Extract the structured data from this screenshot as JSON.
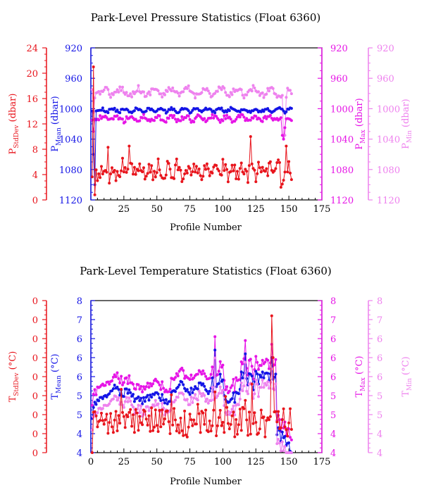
{
  "footer_text": "",
  "colors": {
    "stddev": "#e8141c",
    "mean": "#1414e6",
    "max": "#e614e6",
    "min": "#ee82ee",
    "axis": "#000000"
  },
  "chart_data": [
    {
      "type": "line",
      "title": "Park-Level Pressure Statistics (Float 6360)",
      "xlabel": "Profile Number",
      "xlim": [
        0,
        175
      ],
      "x_ticks": [
        "0",
        "25",
        "50",
        "75",
        "100",
        "125",
        "150",
        "175"
      ],
      "axes": {
        "stddev": {
          "label": "P",
          "sub": "StdDev",
          "unit": " (dbar)",
          "ticks": [
            "24",
            "20",
            "16",
            "12",
            "8",
            "4",
            "0"
          ],
          "ylim": [
            0,
            24
          ]
        },
        "mean": {
          "label": "P",
          "sub": "Mean",
          "unit": " (dbar)",
          "ticks": [
            "920",
            "960",
            "1000",
            "1040",
            "1080",
            "1120"
          ],
          "ylim": [
            1120,
            920
          ],
          "inverted": true
        },
        "max": {
          "label": "P",
          "sub": "Max",
          "unit": " (dbar)",
          "ticks": [
            "920",
            "960",
            "1000",
            "1040",
            "1080",
            "1120"
          ],
          "ylim": [
            1120,
            920
          ],
          "inverted": true
        },
        "min": {
          "label": "P",
          "sub": "Min",
          "unit": " (dbar)",
          "ticks": [
            "920",
            "960",
            "1000",
            "1040",
            "1080",
            "1120"
          ],
          "ylim": [
            1120,
            920
          ],
          "inverted": true
        }
      },
      "series": [
        {
          "key": "min",
          "base": 978,
          "amp": 5,
          "freq": 0.5,
          "noise": 4,
          "spikes": [
            [
              1,
              1005
            ],
            [
              145,
              1040
            ],
            [
              146,
              1035
            ],
            [
              147,
              985
            ]
          ]
        },
        {
          "key": "max",
          "base": 1013,
          "amp": 3,
          "freq": 0.6,
          "noise": 3,
          "spikes": [
            [
              1,
              1030
            ],
            [
              144,
              1035
            ],
            [
              145,
              1040
            ],
            [
              146,
              1025
            ]
          ]
        },
        {
          "key": "mean",
          "base": 1002,
          "amp": 2,
          "freq": 0.7,
          "noise": 2,
          "spikes": [
            [
              1,
              1060
            ],
            [
              2,
              1100
            ]
          ]
        },
        {
          "key": "stddev",
          "base": 4.5,
          "amp": 1.0,
          "freq": 0.9,
          "noise": 1.2,
          "spikes": [
            [
              1,
              21
            ],
            [
              2,
              0.8
            ],
            [
              12,
              8.3
            ],
            [
              28,
              8.5
            ],
            [
              120,
              10
            ],
            [
              143,
              2
            ],
            [
              144,
              2.5
            ],
            [
              147,
              8.5
            ]
          ]
        }
      ]
    },
    {
      "type": "line",
      "title": "Park-Level Temperature Statistics (Float 6360)",
      "xlabel": "Profile Number",
      "xlim": [
        0,
        175
      ],
      "x_ticks": [
        "0",
        "25",
        "50",
        "75",
        "100",
        "125",
        "150",
        "175"
      ],
      "axes": {
        "stddev": {
          "label": "T",
          "sub": "StdDev",
          "unit": " (°C)",
          "ticks": [
            "0",
            "0",
            "0",
            "0",
            "0",
            "0",
            "0",
            "0",
            "0"
          ],
          "ylim": [
            0,
            0.08
          ]
        },
        "mean": {
          "label": "T",
          "sub": "Mean",
          "unit": " (°C)",
          "ticks": [
            "8",
            "7",
            "6",
            "6",
            "6",
            "5",
            "5",
            "4",
            "4"
          ],
          "ylim": [
            4.0,
            8.0
          ]
        },
        "max": {
          "label": "T",
          "sub": "Max",
          "unit": " (°C)",
          "ticks": [
            "8",
            "7",
            "6",
            "6",
            "6",
            "5",
            "5",
            "4",
            "4"
          ],
          "ylim": [
            4.0,
            8.0
          ]
        },
        "min": {
          "label": "T",
          "sub": "Min",
          "unit": " (°C)",
          "ticks": [
            "8",
            "7",
            "6",
            "6",
            "6",
            "5",
            "5",
            "4",
            "4"
          ],
          "ylim": [
            4.0,
            8.0
          ]
        }
      },
      "series": [
        {
          "key": "max",
          "profile": "tmax"
        },
        {
          "key": "mean",
          "profile": "tmean"
        },
        {
          "key": "min",
          "profile": "tmin"
        },
        {
          "key": "stddev",
          "profile": "tsd"
        }
      ]
    }
  ]
}
